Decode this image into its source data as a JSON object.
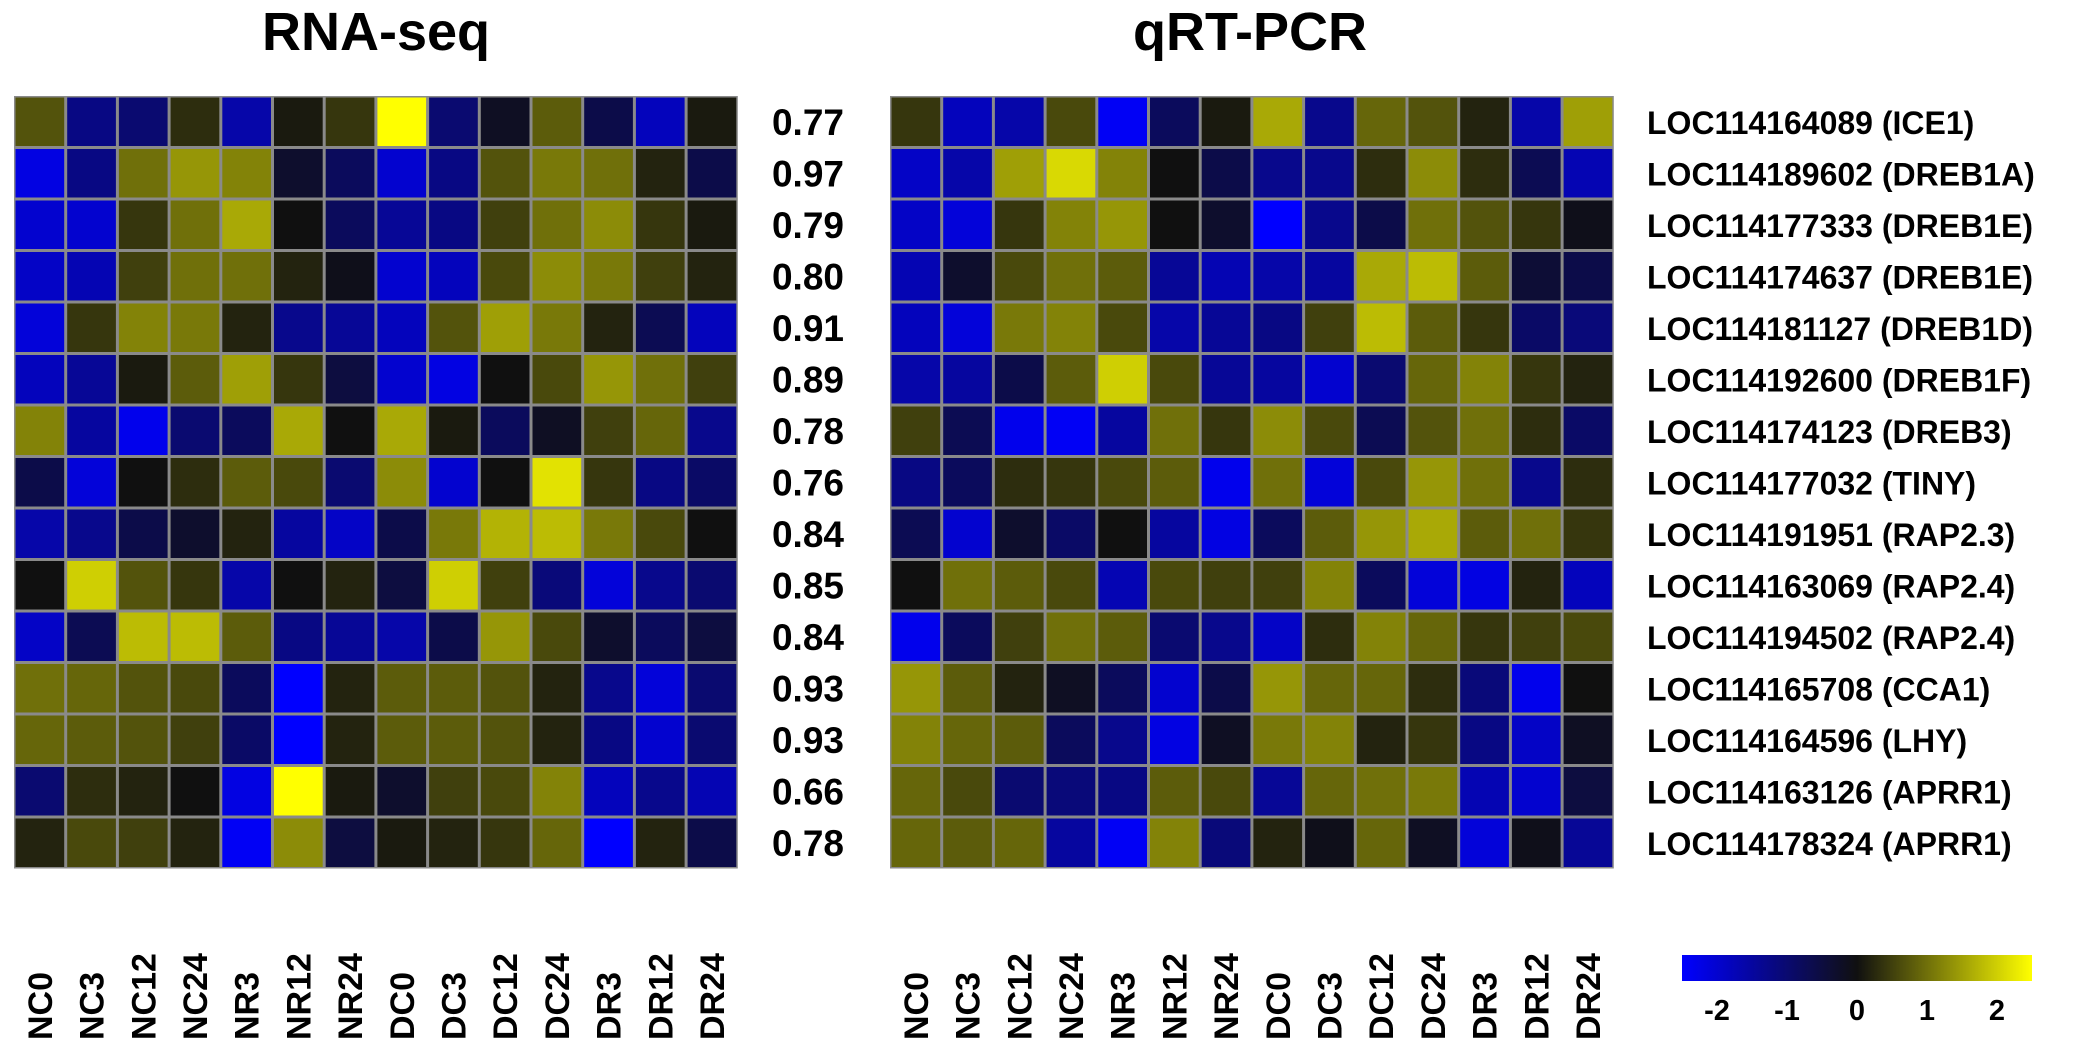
{
  "chart_data": [
    {
      "type": "heatmap",
      "title": "RNA-seq",
      "samples": [
        "NC0",
        "NC3",
        "NC12",
        "NC24",
        "NR3",
        "NR12",
        "NR24",
        "DC0",
        "DC3",
        "DC12",
        "DC24",
        "DR3",
        "DR12",
        "DR24"
      ],
      "correlations": [
        "0.77",
        "0.97",
        "0.79",
        "0.80",
        "0.91",
        "0.89",
        "0.78",
        "0.76",
        "0.84",
        "0.85",
        "0.84",
        "0.93",
        "0.93",
        "0.66",
        "0.78"
      ],
      "values": [
        [
          0.7,
          -1.2,
          -1.0,
          0.3,
          -1.6,
          0.1,
          0.4,
          2.5,
          -1.0,
          -0.2,
          0.8,
          -0.6,
          -1.8,
          0.1
        ],
        [
          -2.2,
          -1.2,
          1.0,
          1.4,
          1.2,
          -0.3,
          -0.8,
          -2.0,
          -1.2,
          0.7,
          1.1,
          1.0,
          0.2,
          -0.6
        ],
        [
          -2.0,
          -2.0,
          0.4,
          1.0,
          1.6,
          0.0,
          -0.8,
          -1.4,
          -1.2,
          0.5,
          1.0,
          1.3,
          0.4,
          0.1
        ],
        [
          -1.9,
          -1.7,
          0.5,
          1.0,
          1.0,
          0.2,
          -0.1,
          -2.0,
          -1.8,
          0.6,
          1.3,
          1.1,
          0.5,
          0.2
        ],
        [
          -2.1,
          0.4,
          1.2,
          1.1,
          0.2,
          -1.3,
          -1.4,
          -1.8,
          0.7,
          1.5,
          1.1,
          0.2,
          -0.7,
          -1.8
        ],
        [
          -1.8,
          -1.4,
          0.1,
          0.8,
          1.5,
          0.4,
          -0.5,
          -2.0,
          -2.2,
          0.0,
          0.6,
          1.4,
          1.0,
          0.5
        ],
        [
          1.2,
          -1.5,
          -2.3,
          -1.0,
          -0.8,
          1.6,
          0.0,
          1.6,
          0.1,
          -0.8,
          -0.2,
          0.5,
          0.9,
          -1.3
        ],
        [
          -0.6,
          -2.1,
          0.0,
          0.3,
          0.8,
          0.6,
          -1.0,
          1.3,
          -2.0,
          0.0,
          2.2,
          0.4,
          -1.2,
          -0.9
        ],
        [
          -1.6,
          -1.3,
          -0.6,
          -0.3,
          0.2,
          -1.5,
          -1.9,
          -0.6,
          1.1,
          1.7,
          1.8,
          1.1,
          0.6,
          0.0
        ],
        [
          0.0,
          2.0,
          0.7,
          0.4,
          -1.6,
          0.0,
          0.2,
          -0.5,
          2.0,
          0.5,
          -1.1,
          -2.1,
          -1.3,
          -1.0
        ],
        [
          -1.9,
          -0.7,
          1.8,
          1.8,
          0.8,
          -1.2,
          -1.4,
          -1.6,
          -0.6,
          1.4,
          0.6,
          -0.3,
          -0.8,
          -0.5
        ],
        [
          1.0,
          0.9,
          0.7,
          0.6,
          -0.8,
          -2.5,
          0.2,
          0.8,
          0.8,
          0.7,
          0.2,
          -1.3,
          -2.1,
          -1.0
        ],
        [
          0.9,
          0.8,
          0.7,
          0.5,
          -0.9,
          -2.5,
          0.2,
          0.8,
          0.8,
          0.7,
          0.2,
          -1.2,
          -2.0,
          -1.0
        ],
        [
          -1.0,
          0.3,
          0.2,
          0.0,
          -2.2,
          2.5,
          0.1,
          -0.3,
          0.5,
          0.6,
          1.2,
          -1.8,
          -1.3,
          -1.7
        ],
        [
          0.2,
          0.6,
          0.5,
          0.2,
          -2.4,
          1.3,
          -0.5,
          0.1,
          0.2,
          0.4,
          0.9,
          -2.5,
          0.2,
          -0.6
        ]
      ]
    },
    {
      "type": "heatmap",
      "title": "qRT-PCR",
      "samples": [
        "NC0",
        "NC3",
        "NC12",
        "NC24",
        "NR3",
        "NR12",
        "NR24",
        "DC0",
        "DC3",
        "DC12",
        "DC24",
        "DR3",
        "DR12",
        "DR24"
      ],
      "genes": [
        "LOC114164089 (ICE1)",
        "LOC114189602 (DREB1A)",
        "LOC114177333 (DREB1E)",
        "LOC114174637 (DREB1E)",
        "LOC114181127 (DREB1D)",
        "LOC114192600 (DREB1F)",
        "LOC114174123 (DREB3)",
        "LOC114177032 (TINY)",
        "LOC114191951 (RAP2.3)",
        "LOC114163069 (RAP2.4)",
        "LOC114194502 (RAP2.4)",
        "LOC114165708 (CCA1)",
        "LOC114164596 (LHY)",
        "LOC114163126 (APRR1)",
        "LOC114178324 (APRR1)"
      ],
      "values": [
        [
          0.4,
          -1.8,
          -1.6,
          0.6,
          -2.4,
          -0.8,
          0.1,
          1.6,
          -1.3,
          0.9,
          0.7,
          0.2,
          -1.6,
          1.5
        ],
        [
          -1.9,
          -1.6,
          1.5,
          2.1,
          1.2,
          0.0,
          -0.6,
          -1.3,
          -1.3,
          0.3,
          1.3,
          0.3,
          -0.7,
          -1.7
        ],
        [
          -1.9,
          -2.1,
          0.4,
          1.2,
          1.4,
          0.0,
          -0.3,
          -2.5,
          -1.3,
          -0.6,
          1.0,
          0.7,
          0.4,
          -0.1
        ],
        [
          -1.7,
          -0.3,
          0.6,
          1.0,
          0.8,
          -1.4,
          -1.7,
          -1.6,
          -1.5,
          1.6,
          1.8,
          0.8,
          -0.4,
          -0.6
        ],
        [
          -1.8,
          -2.1,
          1.1,
          1.2,
          0.6,
          -1.6,
          -1.4,
          -1.2,
          0.5,
          1.8,
          0.8,
          0.4,
          -0.9,
          -1.1
        ],
        [
          -1.6,
          -1.5,
          -0.6,
          0.8,
          2.0,
          0.6,
          -1.4,
          -1.5,
          -2.0,
          -1.0,
          0.9,
          1.2,
          0.4,
          0.2
        ],
        [
          0.5,
          -0.7,
          -2.3,
          -2.4,
          -1.5,
          1.0,
          0.4,
          1.3,
          0.6,
          -0.7,
          0.7,
          1.0,
          0.3,
          -0.9
        ],
        [
          -1.2,
          -0.8,
          0.3,
          0.4,
          0.6,
          0.8,
          -2.3,
          1.0,
          -2.1,
          0.6,
          1.4,
          1.0,
          -1.3,
          0.3
        ],
        [
          -0.7,
          -2.0,
          -0.3,
          -0.9,
          0.0,
          -1.5,
          -2.2,
          -0.8,
          0.8,
          1.4,
          1.6,
          0.8,
          1.0,
          0.4
        ],
        [
          0.0,
          1.0,
          0.8,
          0.6,
          -1.7,
          0.6,
          0.5,
          0.5,
          1.2,
          -0.8,
          -2.1,
          -2.2,
          0.2,
          -1.8
        ],
        [
          -2.3,
          -0.8,
          0.5,
          1.0,
          0.8,
          -1.0,
          -1.3,
          -1.9,
          0.3,
          1.2,
          0.9,
          0.4,
          0.5,
          0.6
        ],
        [
          1.4,
          0.8,
          0.2,
          -0.2,
          -0.8,
          -2.0,
          -0.6,
          1.4,
          0.9,
          0.9,
          0.3,
          -1.1,
          -2.3,
          0.0
        ],
        [
          1.2,
          0.9,
          0.8,
          -0.8,
          -1.3,
          -2.2,
          -0.2,
          1.1,
          1.2,
          0.2,
          0.4,
          -1.2,
          -1.9,
          -0.2
        ],
        [
          0.9,
          0.6,
          -1.0,
          -1.1,
          -1.2,
          0.8,
          0.6,
          -1.4,
          0.9,
          1.0,
          1.1,
          -1.7,
          -2.0,
          -0.5
        ],
        [
          0.9,
          0.8,
          0.9,
          -1.5,
          -2.4,
          1.2,
          -1.1,
          0.2,
          -0.1,
          0.9,
          -0.2,
          -2.1,
          -0.1,
          -1.4
        ]
      ]
    }
  ],
  "color_scale": {
    "ticks": [
      "-2",
      "-1",
      "0",
      "1",
      "2"
    ],
    "range": [
      -2.5,
      2.5
    ],
    "colors": {
      "low": "#0000ff",
      "mid": "#101010",
      "high": "#ffff00"
    }
  }
}
